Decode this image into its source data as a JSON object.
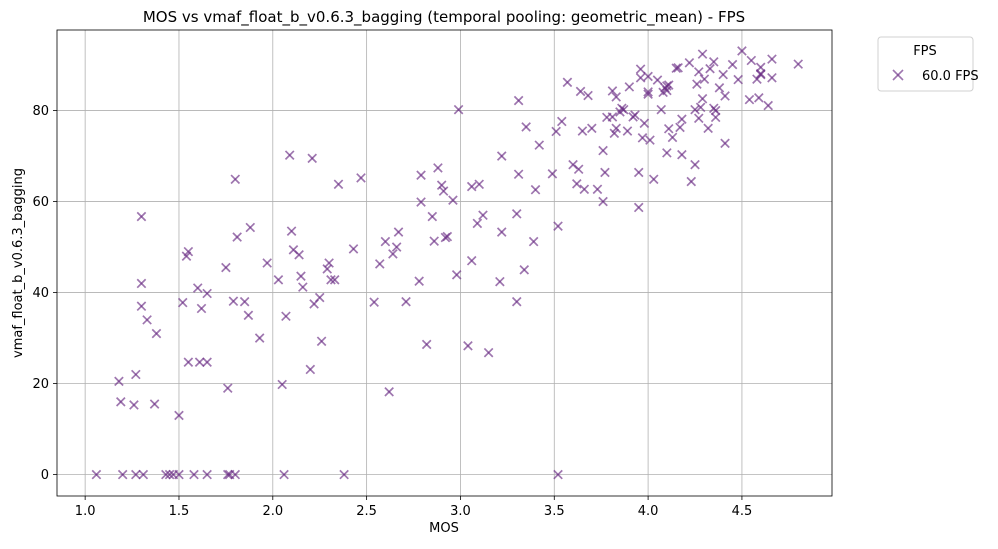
{
  "chart_data": {
    "type": "scatter",
    "title": "MOS vs vmaf_float_b_v0.6.3_bagging (temporal pooling: geometric_mean) - FPS",
    "xlabel": "MOS",
    "ylabel": "vmaf_float_b_v0.6.3_bagging",
    "xlim": [
      0.85,
      4.98
    ],
    "ylim": [
      -4.7,
      97.7
    ],
    "xticks": [
      "1.0",
      "1.5",
      "2.0",
      "2.5",
      "3.0",
      "3.5",
      "4.0",
      "4.5"
    ],
    "xtick_values": [
      1.0,
      1.5,
      2.0,
      2.5,
      3.0,
      3.5,
      4.0,
      4.5
    ],
    "yticks": [
      "0",
      "20",
      "40",
      "60",
      "80"
    ],
    "ytick_values": [
      0,
      20,
      40,
      60,
      80
    ],
    "grid": true,
    "marker": "x",
    "color": "#6a2c84",
    "legend": {
      "title": "FPS",
      "placement": "outside-top-right"
    },
    "series": [
      {
        "name": "60.0 FPS",
        "points": [
          [
            1.06,
            0
          ],
          [
            1.2,
            0
          ],
          [
            1.27,
            0
          ],
          [
            1.31,
            0
          ],
          [
            1.43,
            0
          ],
          [
            1.45,
            0
          ],
          [
            1.47,
            0
          ],
          [
            1.5,
            0
          ],
          [
            1.58,
            0
          ],
          [
            1.65,
            0
          ],
          [
            1.76,
            0
          ],
          [
            1.77,
            0
          ],
          [
            1.8,
            0
          ],
          [
            2.06,
            0
          ],
          [
            2.38,
            0
          ],
          [
            3.52,
            0
          ],
          [
            1.5,
            13
          ],
          [
            1.18,
            20.5
          ],
          [
            1.19,
            16
          ],
          [
            1.26,
            15.3
          ],
          [
            1.27,
            22
          ],
          [
            1.37,
            15.5
          ],
          [
            1.3,
            42
          ],
          [
            1.3,
            37
          ],
          [
            1.33,
            34
          ],
          [
            1.38,
            31
          ],
          [
            1.3,
            56.7
          ],
          [
            1.55,
            24.7
          ],
          [
            1.61,
            24.7
          ],
          [
            1.65,
            24.7
          ],
          [
            1.52,
            37.8
          ],
          [
            1.54,
            48
          ],
          [
            1.55,
            49
          ],
          [
            1.6,
            41
          ],
          [
            1.62,
            36.5
          ],
          [
            1.65,
            39.8
          ],
          [
            1.75,
            45.5
          ],
          [
            1.76,
            19
          ],
          [
            1.79,
            38.1
          ],
          [
            1.81,
            52.2
          ],
          [
            1.85,
            38
          ],
          [
            1.88,
            54.3
          ],
          [
            1.87,
            35
          ],
          [
            1.93,
            30
          ],
          [
            1.8,
            64.9
          ],
          [
            1.97,
            46.5
          ],
          [
            2.03,
            42.8
          ],
          [
            2.05,
            19.8
          ],
          [
            2.07,
            34.8
          ],
          [
            2.09,
            70.2
          ],
          [
            2.1,
            53.5
          ],
          [
            2.11,
            49.4
          ],
          [
            2.14,
            48.3
          ],
          [
            2.15,
            43.6
          ],
          [
            2.16,
            41.2
          ],
          [
            2.2,
            23.1
          ],
          [
            2.21,
            69.5
          ],
          [
            2.22,
            37.5
          ],
          [
            2.25,
            38.9
          ],
          [
            2.26,
            29.3
          ],
          [
            2.29,
            45.2
          ],
          [
            2.3,
            46.5
          ],
          [
            2.31,
            42.8
          ],
          [
            2.33,
            42.8
          ],
          [
            2.35,
            63.8
          ],
          [
            2.43,
            49.6
          ],
          [
            2.47,
            65.2
          ],
          [
            2.54,
            37.9
          ],
          [
            2.57,
            46.3
          ],
          [
            2.6,
            51.2
          ],
          [
            2.62,
            18.2
          ],
          [
            2.64,
            48.5
          ],
          [
            2.66,
            50
          ],
          [
            2.67,
            53.3
          ],
          [
            2.71,
            38
          ],
          [
            2.78,
            42.5
          ],
          [
            2.79,
            59.9
          ],
          [
            2.79,
            65.8
          ],
          [
            2.82,
            28.6
          ],
          [
            2.85,
            56.7
          ],
          [
            2.86,
            51.3
          ],
          [
            2.88,
            67.4
          ],
          [
            2.9,
            63.6
          ],
          [
            2.91,
            62.3
          ],
          [
            2.92,
            52.1
          ],
          [
            2.93,
            52.3
          ],
          [
            2.96,
            60.3
          ],
          [
            2.98,
            43.9
          ],
          [
            2.99,
            80.2
          ],
          [
            3.04,
            28.3
          ],
          [
            3.06,
            63.3
          ],
          [
            3.06,
            47
          ],
          [
            3.09,
            55.2
          ],
          [
            3.1,
            63.8
          ],
          [
            3.12,
            57
          ],
          [
            3.15,
            26.8
          ],
          [
            3.21,
            42.4
          ],
          [
            3.22,
            53.3
          ],
          [
            3.22,
            70
          ],
          [
            3.3,
            38
          ],
          [
            3.3,
            57.3
          ],
          [
            3.31,
            66
          ],
          [
            3.31,
            82.2
          ],
          [
            3.34,
            45
          ],
          [
            3.35,
            76.4
          ],
          [
            3.39,
            51.2
          ],
          [
            3.4,
            62.6
          ],
          [
            3.42,
            72.4
          ],
          [
            3.49,
            66.1
          ],
          [
            3.51,
            75.4
          ],
          [
            3.52,
            54.6
          ],
          [
            3.54,
            77.6
          ],
          [
            3.57,
            86.2
          ],
          [
            3.6,
            68.1
          ],
          [
            3.62,
            63.9
          ],
          [
            3.63,
            67.1
          ],
          [
            3.64,
            84.2
          ],
          [
            3.65,
            75.5
          ],
          [
            3.66,
            62.7
          ],
          [
            3.68,
            83.3
          ],
          [
            3.7,
            76.1
          ],
          [
            3.73,
            62.7
          ],
          [
            3.76,
            60
          ],
          [
            3.76,
            71.2
          ],
          [
            3.77,
            66.4
          ],
          [
            3.78,
            78.5
          ],
          [
            3.81,
            78.6
          ],
          [
            3.81,
            84.3
          ],
          [
            3.82,
            75
          ],
          [
            3.83,
            76.1
          ],
          [
            3.83,
            83
          ],
          [
            3.85,
            79.7
          ],
          [
            3.86,
            80.5
          ],
          [
            3.87,
            80.2
          ],
          [
            3.89,
            75.5
          ],
          [
            3.9,
            85.2
          ],
          [
            3.92,
            78.6
          ],
          [
            3.93,
            79
          ],
          [
            3.95,
            66.4
          ],
          [
            3.95,
            58.7
          ],
          [
            3.96,
            87.2
          ],
          [
            3.96,
            89.1
          ],
          [
            3.97,
            74
          ],
          [
            3.98,
            77.2
          ],
          [
            4.0,
            83.6
          ],
          [
            4.0,
            87.5
          ],
          [
            4.0,
            84.1
          ],
          [
            4.01,
            73.5
          ],
          [
            4.03,
            64.9
          ],
          [
            4.07,
            80.2
          ],
          [
            4.08,
            84
          ],
          [
            4.09,
            85
          ],
          [
            4.1,
            84.4
          ],
          [
            4.1,
            85.4
          ],
          [
            4.11,
            85.6
          ],
          [
            4.11,
            76
          ],
          [
            4.13,
            74.1
          ],
          [
            4.15,
            89.3
          ],
          [
            4.16,
            89.4
          ],
          [
            4.17,
            76.3
          ],
          [
            4.18,
            70.3
          ],
          [
            4.18,
            78.1
          ],
          [
            4.22,
            90.5
          ],
          [
            4.23,
            64.4
          ],
          [
            4.25,
            80.2
          ],
          [
            4.25,
            68.1
          ],
          [
            4.26,
            85.8
          ],
          [
            4.27,
            78.3
          ],
          [
            4.27,
            88.5
          ],
          [
            4.28,
            80.7
          ],
          [
            4.29,
            92.4
          ],
          [
            4.29,
            82.6
          ],
          [
            4.3,
            86.9
          ],
          [
            4.32,
            76.1
          ],
          [
            4.33,
            89.2
          ],
          [
            4.35,
            90.7
          ],
          [
            4.35,
            80.5
          ],
          [
            4.36,
            80
          ],
          [
            4.36,
            78.5
          ],
          [
            4.38,
            85
          ],
          [
            4.4,
            87.9
          ],
          [
            4.41,
            72.8
          ],
          [
            4.41,
            83.2
          ],
          [
            4.45,
            90.1
          ],
          [
            4.48,
            86.8
          ],
          [
            4.5,
            93.1
          ],
          [
            4.54,
            82.4
          ],
          [
            4.55,
            91
          ],
          [
            4.58,
            86.9
          ],
          [
            4.59,
            82.8
          ],
          [
            4.6,
            87.9
          ],
          [
            4.6,
            88.1
          ],
          [
            4.6,
            89.5
          ],
          [
            4.64,
            81.1
          ],
          [
            4.66,
            87.2
          ],
          [
            4.66,
            91.3
          ],
          [
            4.8,
            90.2
          ],
          [
            4.1,
            70.7
          ],
          [
            4.05,
            86.7
          ]
        ]
      }
    ]
  }
}
